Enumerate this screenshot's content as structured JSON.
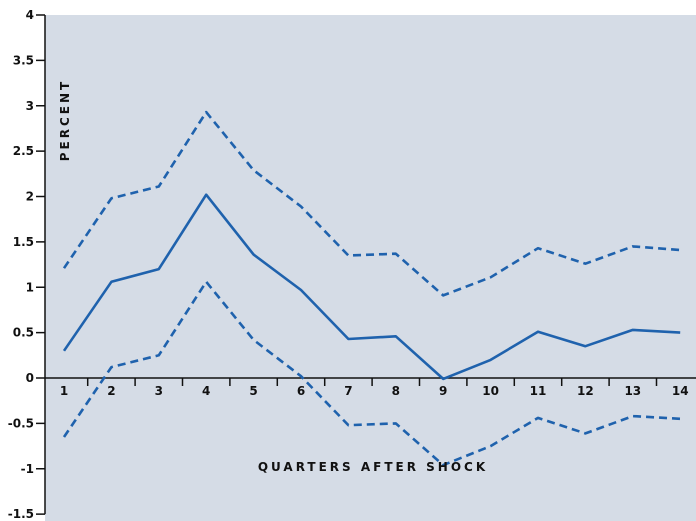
{
  "chart_data": {
    "type": "line",
    "title": "",
    "xlabel": "QUARTERS AFTER SHOCK",
    "ylabel": "PERCENT",
    "x": [
      1,
      2,
      3,
      4,
      5,
      6,
      7,
      8,
      9,
      10,
      11,
      12,
      13,
      14
    ],
    "x_tick_labels": [
      "1",
      "2",
      "3",
      "4",
      "5",
      "6",
      "7",
      "8",
      "9",
      "10",
      "11",
      "12",
      "13",
      "14"
    ],
    "y_tick_labels": [
      "4",
      "3.5",
      "3",
      "2.5",
      "2",
      "1.5",
      "1",
      "0.5",
      "0",
      "-0.5",
      "-1",
      "-1.5"
    ],
    "ylim": [
      -1.5,
      4
    ],
    "grid": false,
    "background_color": "#d5dce6",
    "series": [
      {
        "name": "",
        "style": "solid",
        "color": "#1f62ad",
        "values": [
          0.3,
          1.06,
          1.2,
          2.02,
          1.36,
          0.97,
          0.43,
          0.46,
          -0.01,
          0.2,
          0.51,
          0.35,
          0.53,
          0.5
        ]
      },
      {
        "name": "",
        "style": "dashed",
        "color": "#1f62ad",
        "values": [
          1.21,
          1.98,
          2.11,
          2.93,
          2.29,
          1.89,
          1.35,
          1.37,
          0.91,
          1.11,
          1.43,
          1.26,
          1.45,
          1.41
        ]
      },
      {
        "name": "",
        "style": "dashed",
        "color": "#1f62ad",
        "values": [
          -0.65,
          0.12,
          0.25,
          1.06,
          0.42,
          0.02,
          -0.52,
          -0.5,
          -0.96,
          -0.75,
          -0.44,
          -0.61,
          -0.42,
          -0.45
        ]
      }
    ]
  }
}
